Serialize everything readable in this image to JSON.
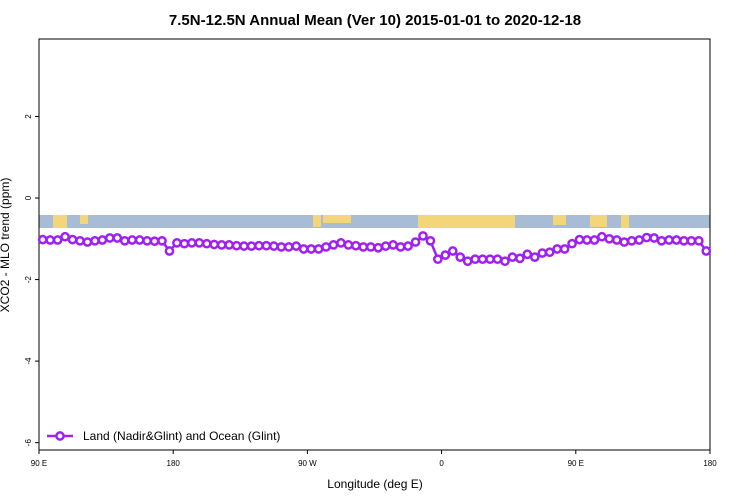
{
  "chart_data": {
    "type": "line",
    "title": "7.5N-12.5N Annual Mean (Ver 10)   2015-01-01 to 2020-12-18",
    "x_label": "Longitude (deg E)",
    "y_label": "XCO2 - MLO trend (ppm)",
    "xlim": [
      90,
      540
    ],
    "ylim": [
      -6.18,
      3.9
    ],
    "xticks": [
      {
        "value": 90,
        "label": "90 E"
      },
      180,
      {
        "value": 270,
        "label": "90 W"
      },
      {
        "value": 360,
        "label": "0"
      },
      {
        "value": 450,
        "label": "90 E"
      },
      {
        "value": 540,
        "label": "180"
      }
    ],
    "yticks": [
      -6,
      -4,
      -2,
      0,
      2
    ],
    "legend": "bottom-left",
    "x": [
      92.5,
      97.5,
      102.5,
      107.5,
      112.5,
      117.5,
      122.5,
      127.5,
      132.5,
      137.5,
      142.5,
      147.5,
      152.5,
      157.5,
      162.5,
      167.5,
      172.5,
      177.5,
      182.5,
      187.5,
      192.5,
      197.5,
      202.5,
      207.5,
      212.5,
      217.5,
      222.5,
      227.5,
      232.5,
      237.5,
      242.5,
      247.5,
      252.5,
      257.5,
      262.5,
      267.5,
      272.5,
      277.5,
      282.5,
      287.5,
      292.5,
      297.5,
      302.5,
      307.5,
      312.5,
      317.5,
      322.5,
      327.5,
      332.5,
      337.5,
      342.5,
      347.5,
      352.5,
      357.5,
      362.5,
      367.5,
      372.5,
      377.5,
      382.5,
      387.5,
      392.5,
      397.5,
      402.5,
      407.5,
      412.5,
      417.5,
      422.5,
      427.5,
      432.5,
      437.5,
      442.5,
      447.5,
      452.5,
      457.5,
      462.5,
      467.5,
      472.5,
      477.5,
      482.5,
      487.5,
      492.5,
      497.5,
      502.5,
      507.5,
      512.5,
      517.5,
      522.5,
      527.5,
      532.5,
      537.5
    ],
    "series": [
      {
        "name": "Land (Nadir&Glint) and Ocean (Glint)",
        "color": "#a020f0",
        "values": [
          -1.02,
          -1.03,
          -1.03,
          -0.95,
          -1.02,
          -1.05,
          -1.08,
          -1.05,
          -1.03,
          -0.98,
          -0.98,
          -1.05,
          -1.03,
          -1.03,
          -1.05,
          -1.06,
          -1.05,
          -1.3,
          -1.1,
          -1.12,
          -1.1,
          -1.1,
          -1.12,
          -1.14,
          -1.15,
          -1.15,
          -1.17,
          -1.18,
          -1.18,
          -1.17,
          -1.17,
          -1.18,
          -1.2,
          -1.2,
          -1.18,
          -1.25,
          -1.25,
          -1.25,
          -1.2,
          -1.15,
          -1.1,
          -1.15,
          -1.17,
          -1.2,
          -1.2,
          -1.22,
          -1.18,
          -1.15,
          -1.2,
          -1.18,
          -1.08,
          -0.93,
          -1.05,
          -1.5,
          -1.4,
          -1.3,
          -1.45,
          -1.55,
          -1.5,
          -1.5,
          -1.5,
          -1.5,
          -1.55,
          -1.45,
          -1.48,
          -1.38,
          -1.45,
          -1.35,
          -1.33,
          -1.25,
          -1.25,
          -1.12,
          -1.02,
          -1.03,
          -1.03,
          -0.95,
          -1.0,
          -1.03,
          -1.08,
          -1.05,
          -1.03,
          -0.97,
          -0.98,
          -1.05,
          -1.03,
          -1.03,
          -1.05,
          -1.05,
          -1.05,
          -1.3
        ]
      }
    ]
  }
}
